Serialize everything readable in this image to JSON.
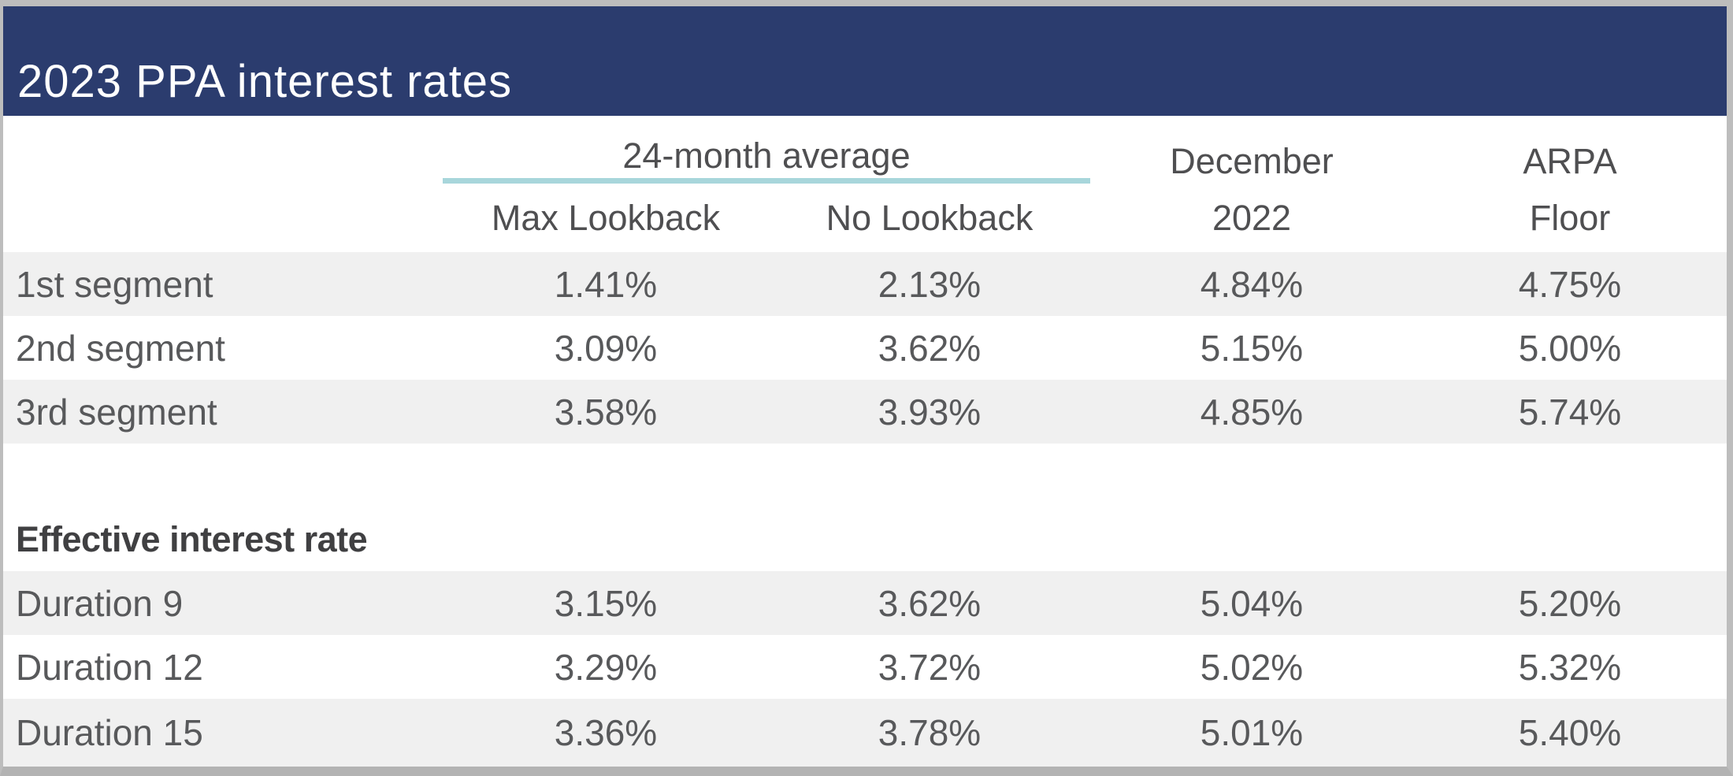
{
  "title": "2023 PPA interest rates",
  "header": {
    "group_label": "24-month average",
    "max_lookback": "Max Lookback",
    "no_lookback": "No Lookback",
    "december_line1": "December",
    "december_line2": "2022",
    "arpa_line1": "ARPA",
    "arpa_line2": "Floor"
  },
  "section_label": "Effective interest rate",
  "segment_rows": [
    {
      "label": "1st segment",
      "values": [
        "1.41%",
        "2.13%",
        "4.84%",
        "4.75%"
      ]
    },
    {
      "label": "2nd segment",
      "values": [
        "3.09%",
        "3.62%",
        "5.15%",
        "5.00%"
      ]
    },
    {
      "label": "3rd segment",
      "values": [
        "3.58%",
        "3.93%",
        "4.85%",
        "5.74%"
      ]
    }
  ],
  "duration_rows": [
    {
      "label": "Duration 9",
      "values": [
        "3.15%",
        "3.62%",
        "5.04%",
        "5.20%"
      ]
    },
    {
      "label": "Duration 12",
      "values": [
        "3.29%",
        "3.72%",
        "5.02%",
        "5.32%"
      ]
    },
    {
      "label": "Duration 15",
      "values": [
        "3.36%",
        "3.78%",
        "5.01%",
        "5.40%"
      ]
    }
  ],
  "colors": {
    "title_bar": "#2b3c6e",
    "group_underline": "#a8d6db",
    "row_stripe": "#f0f0f0",
    "text": "#58595b",
    "frame_border": "#bdbdbd"
  },
  "chart_data": {
    "type": "table",
    "title": "2023 PPA interest rates",
    "columns": [
      "",
      "24-month average - Max Lookback",
      "24-month average - No Lookback",
      "December 2022",
      "ARPA Floor"
    ],
    "rows": [
      [
        "1st segment",
        "1.41%",
        "2.13%",
        "4.84%",
        "4.75%"
      ],
      [
        "2nd segment",
        "3.09%",
        "3.62%",
        "5.15%",
        "5.00%"
      ],
      [
        "3rd segment",
        "3.58%",
        "3.93%",
        "4.85%",
        "5.74%"
      ],
      [
        "Effective interest rate",
        "",
        "",
        "",
        ""
      ],
      [
        "Duration 9",
        "3.15%",
        "3.62%",
        "5.04%",
        "5.20%"
      ],
      [
        "Duration 12",
        "3.29%",
        "3.72%",
        "5.02%",
        "5.32%"
      ],
      [
        "Duration 15",
        "3.36%",
        "3.78%",
        "5.01%",
        "5.40%"
      ]
    ]
  }
}
